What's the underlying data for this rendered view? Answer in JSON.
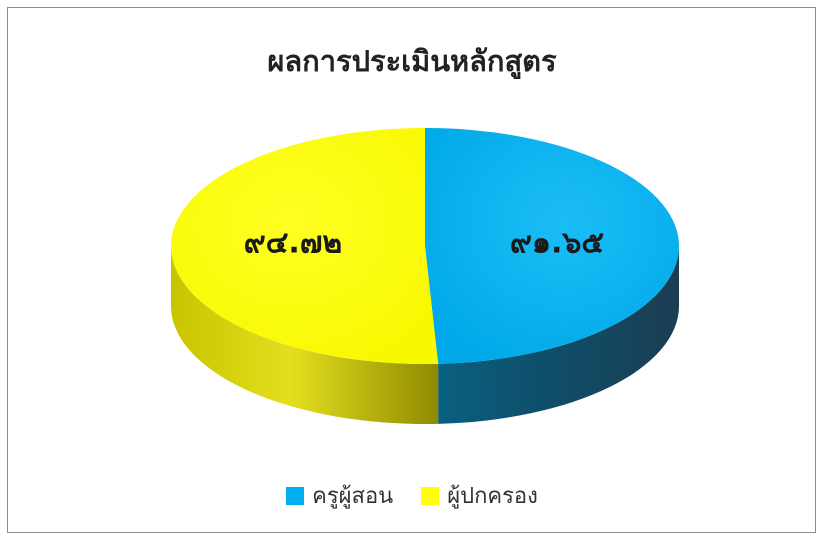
{
  "chart_data": {
    "type": "pie",
    "title": "ผลการประเมินหลักสูตร",
    "categories": [
      "ครูผู้สอน",
      "ผู้ปกครอง"
    ],
    "values": [
      91.65,
      94.72
    ],
    "value_labels": [
      "๙๑.๖๕",
      "๙๔.๗๒"
    ],
    "colors": [
      "#00B0F0",
      "#FFFF00"
    ],
    "three_d": true,
    "legend_position": "bottom"
  }
}
